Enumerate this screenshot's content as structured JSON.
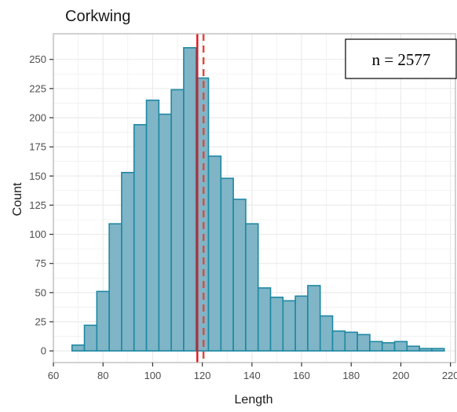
{
  "chart_data": {
    "type": "bar",
    "title": "Corkwing",
    "xlabel": "Length",
    "ylabel": "Count",
    "xlim": [
      60,
      222
    ],
    "ylim": [
      -10,
      272
    ],
    "xticks": [
      60,
      80,
      100,
      120,
      140,
      160,
      180,
      200,
      220
    ],
    "yticks": [
      0,
      25,
      50,
      75,
      100,
      125,
      150,
      175,
      200,
      225,
      250
    ],
    "grid": true,
    "bin_width": 5,
    "bins": [
      {
        "x0": 67.5,
        "x1": 72.5,
        "count": 5
      },
      {
        "x0": 72.5,
        "x1": 77.5,
        "count": 22
      },
      {
        "x0": 77.5,
        "x1": 82.5,
        "count": 51
      },
      {
        "x0": 82.5,
        "x1": 87.5,
        "count": 109
      },
      {
        "x0": 87.5,
        "x1": 92.5,
        "count": 153
      },
      {
        "x0": 92.5,
        "x1": 97.5,
        "count": 194
      },
      {
        "x0": 97.5,
        "x1": 102.5,
        "count": 215
      },
      {
        "x0": 102.5,
        "x1": 107.5,
        "count": 203
      },
      {
        "x0": 107.5,
        "x1": 112.5,
        "count": 224
      },
      {
        "x0": 112.5,
        "x1": 117.5,
        "count": 260
      },
      {
        "x0": 117.5,
        "x1": 122.5,
        "count": 234
      },
      {
        "x0": 122.5,
        "x1": 127.5,
        "count": 167
      },
      {
        "x0": 127.5,
        "x1": 132.5,
        "count": 148
      },
      {
        "x0": 132.5,
        "x1": 137.5,
        "count": 130
      },
      {
        "x0": 137.5,
        "x1": 142.5,
        "count": 109
      },
      {
        "x0": 142.5,
        "x1": 147.5,
        "count": 54
      },
      {
        "x0": 147.5,
        "x1": 152.5,
        "count": 46
      },
      {
        "x0": 152.5,
        "x1": 157.5,
        "count": 43
      },
      {
        "x0": 157.5,
        "x1": 162.5,
        "count": 47
      },
      {
        "x0": 162.5,
        "x1": 167.5,
        "count": 56
      },
      {
        "x0": 167.5,
        "x1": 172.5,
        "count": 30
      },
      {
        "x0": 172.5,
        "x1": 177.5,
        "count": 17
      },
      {
        "x0": 177.5,
        "x1": 182.5,
        "count": 16
      },
      {
        "x0": 182.5,
        "x1": 187.5,
        "count": 14
      },
      {
        "x0": 187.5,
        "x1": 192.5,
        "count": 8
      },
      {
        "x0": 192.5,
        "x1": 197.5,
        "count": 7
      },
      {
        "x0": 197.5,
        "x1": 202.5,
        "count": 8
      },
      {
        "x0": 202.5,
        "x1": 207.5,
        "count": 4
      },
      {
        "x0": 207.5,
        "x1": 212.5,
        "count": 2
      },
      {
        "x0": 212.5,
        "x1": 217.5,
        "count": 2
      }
    ],
    "reference_lines": [
      {
        "style": "solid",
        "x": 118,
        "color": "#e8141c"
      },
      {
        "style": "dashed",
        "x": 120.5,
        "color": "#e8463a"
      }
    ],
    "annotation": "n = 2577",
    "colors": {
      "bar_fill": "#7fb5c6",
      "bar_stroke": "#1e88a3",
      "grid": "#ebebeb",
      "panel_border": "#b3b3b3"
    }
  }
}
